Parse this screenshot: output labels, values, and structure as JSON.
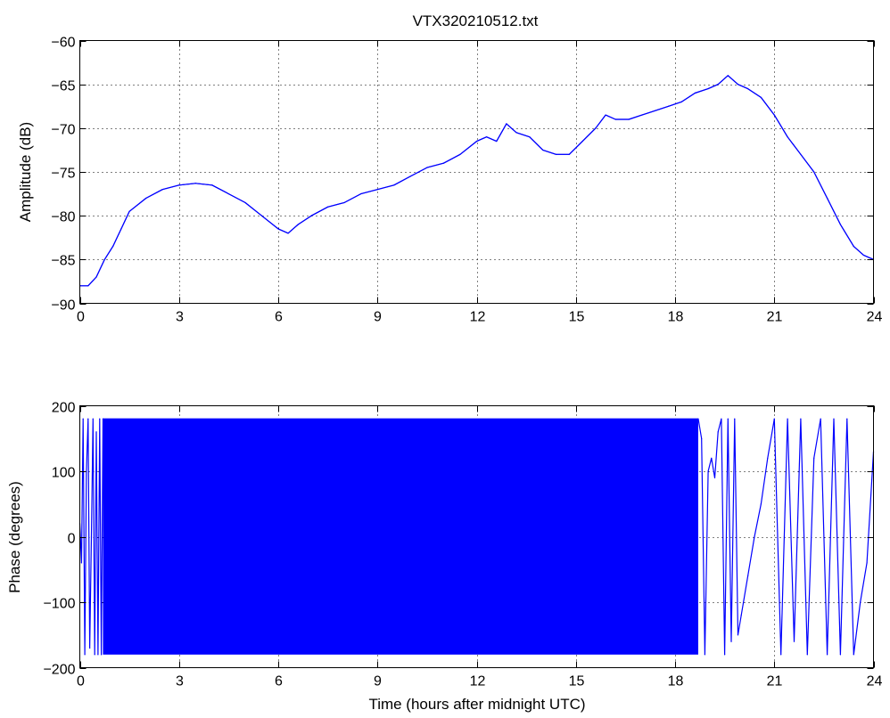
{
  "window": {
    "title": "VTX320210512.txt"
  },
  "chart_data": [
    {
      "type": "line",
      "title": "VTX320210512.txt",
      "xlabel": "",
      "ylabel": "Amplitude (dB)",
      "xlim": [
        0,
        24
      ],
      "ylim": [
        -90,
        -60
      ],
      "xticks": [
        0,
        3,
        6,
        9,
        12,
        15,
        18,
        21,
        24
      ],
      "yticks": [
        -90,
        -85,
        -80,
        -75,
        -70,
        -65,
        -60
      ],
      "xtick_labels": [
        "0",
        "3",
        "6",
        "9",
        "12",
        "15",
        "18",
        "21",
        "24"
      ],
      "ytick_labels": [
        "−90",
        "−85",
        "−80",
        "−75",
        "−70",
        "−65",
        "−60"
      ],
      "grid": true,
      "series": [
        {
          "color": "#0000ff",
          "x": [
            0,
            0.25,
            0.5,
            0.75,
            1.0,
            1.25,
            1.5,
            2.0,
            2.5,
            3.0,
            3.5,
            4.0,
            4.5,
            5.0,
            5.5,
            6.0,
            6.3,
            6.6,
            7.0,
            7.5,
            8.0,
            8.5,
            9.0,
            9.5,
            10.0,
            10.5,
            11.0,
            11.5,
            12.0,
            12.3,
            12.6,
            12.9,
            13.2,
            13.6,
            14.0,
            14.4,
            14.8,
            15.2,
            15.6,
            15.9,
            16.2,
            16.6,
            17.0,
            17.4,
            17.8,
            18.2,
            18.6,
            19.0,
            19.3,
            19.6,
            19.9,
            20.2,
            20.6,
            21.0,
            21.4,
            21.8,
            22.2,
            22.6,
            23.0,
            23.4,
            23.7,
            24.0
          ],
          "values": [
            -88,
            -88,
            -87,
            -85,
            -83.5,
            -81.5,
            -79.5,
            -78,
            -77,
            -76.5,
            -76.3,
            -76.5,
            -77.5,
            -78.5,
            -80,
            -81.5,
            -82,
            -81,
            -80,
            -79,
            -78.5,
            -77.5,
            -77,
            -76.5,
            -75.5,
            -74.5,
            -74,
            -73,
            -71.5,
            -71,
            -71.5,
            -69.5,
            -70.5,
            -71,
            -72.5,
            -73,
            -73,
            -71.5,
            -70,
            -68.5,
            -69,
            -69,
            -68.5,
            -68,
            -67.5,
            -67,
            -66,
            -65.5,
            -65,
            -64,
            -65,
            -65.5,
            -66.5,
            -68.5,
            -71,
            -73,
            -75,
            -78,
            -81,
            -83.5,
            -84.5,
            -85
          ]
        }
      ]
    },
    {
      "type": "line",
      "title": "",
      "xlabel": "Time (hours after midnight UTC)",
      "ylabel": "Phase (degrees)",
      "xlim": [
        0,
        24
      ],
      "ylim": [
        -200,
        200
      ],
      "xticks": [
        0,
        3,
        6,
        9,
        12,
        15,
        18,
        21,
        24
      ],
      "yticks": [
        -200,
        -100,
        0,
        100,
        200
      ],
      "xtick_labels": [
        "0",
        "3",
        "6",
        "9",
        "12",
        "15",
        "18",
        "21",
        "24"
      ],
      "ytick_labels": [
        "−200",
        "−100",
        "0",
        "100",
        "200"
      ],
      "grid": true,
      "wrap_limits": [
        -180,
        180
      ],
      "dense_band": {
        "x_start": 0.7,
        "x_end": 18.7,
        "y_min": -180,
        "y_max": 180
      },
      "series": [
        {
          "color": "#0000ff",
          "x": [
            0,
            0.05,
            0.1,
            0.15,
            0.2,
            0.25,
            0.3,
            0.35,
            0.4,
            0.45,
            0.5,
            0.55,
            0.6,
            0.65,
            0.7,
            18.7,
            18.8,
            18.9,
            19.0,
            19.1,
            19.2,
            19.3,
            19.4,
            19.5,
            19.6,
            19.7,
            19.8,
            19.9,
            20.0,
            20.2,
            20.4,
            20.6,
            20.8,
            21.0,
            21.2,
            21.4,
            21.6,
            21.8,
            22.0,
            22.2,
            22.4,
            22.6,
            22.8,
            23.0,
            23.2,
            23.4,
            23.6,
            23.8,
            24.0
          ],
          "values": [
            20,
            -40,
            180,
            -180,
            100,
            180,
            -170,
            0,
            180,
            -180,
            160,
            -180,
            180,
            -180,
            180,
            180,
            150,
            -180,
            100,
            120,
            90,
            160,
            180,
            -180,
            180,
            -160,
            180,
            -150,
            -120,
            -60,
            0,
            50,
            120,
            180,
            -180,
            180,
            -160,
            180,
            -180,
            120,
            180,
            -180,
            180,
            -180,
            180,
            -180,
            -100,
            -40,
            130
          ]
        }
      ]
    }
  ]
}
